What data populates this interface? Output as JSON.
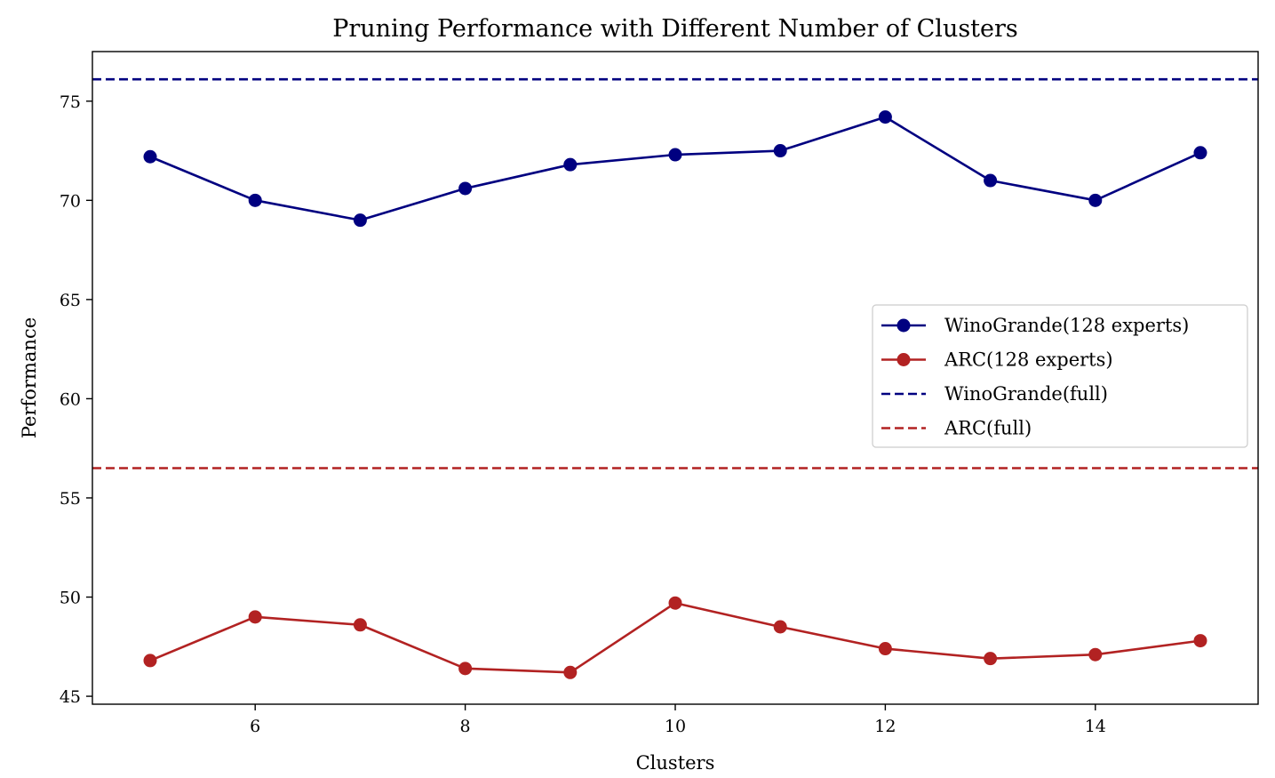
{
  "chart_data": {
    "type": "line",
    "title": "Pruning Performance with Different Number of Clusters",
    "xlabel": "Clusters",
    "ylabel": "Performance",
    "xlim": [
      4.45,
      15.55
    ],
    "ylim": [
      44.6,
      77.5
    ],
    "xticks": [
      6,
      8,
      10,
      12,
      14
    ],
    "yticks": [
      45,
      50,
      55,
      60,
      65,
      70,
      75
    ],
    "grid": false,
    "legend_position": "center-right",
    "x": [
      5,
      6,
      7,
      8,
      9,
      10,
      11,
      12,
      13,
      14,
      15
    ],
    "series": [
      {
        "name": "WinoGrande(128 experts)",
        "color": "#000080",
        "style": "solid-marker",
        "values": [
          72.2,
          70.0,
          69.0,
          70.6,
          71.8,
          72.3,
          72.5,
          74.2,
          71.0,
          70.0,
          72.4
        ]
      },
      {
        "name": "ARC(128 experts)",
        "color": "#b22222",
        "style": "solid-marker",
        "values": [
          46.8,
          49.0,
          48.6,
          46.4,
          46.2,
          49.7,
          48.5,
          47.4,
          46.9,
          47.1,
          47.8
        ]
      }
    ],
    "reference_lines": [
      {
        "name": "WinoGrande(full)",
        "color": "#000080",
        "style": "dashed",
        "value": 76.1
      },
      {
        "name": "ARC(full)",
        "color": "#b22222",
        "style": "dashed",
        "value": 56.5
      }
    ]
  }
}
